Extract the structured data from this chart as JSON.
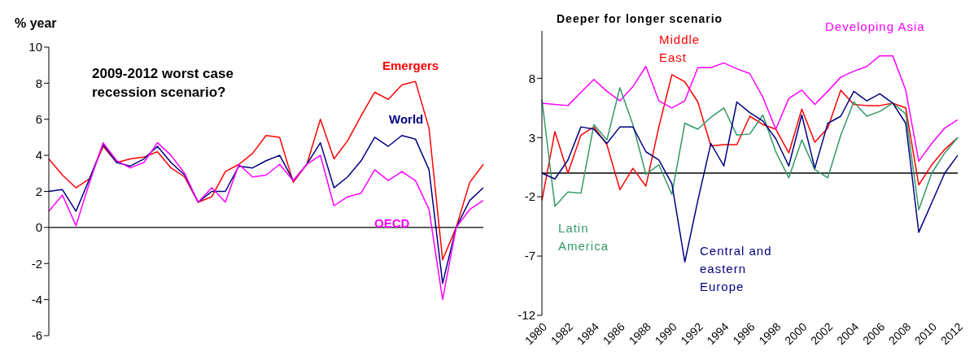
{
  "chart_data": [
    {
      "type": "line",
      "ylabel": "% year",
      "annotations": [
        "2009-2012 worst case recession scenario?"
      ],
      "categories": [
        null,
        null,
        null,
        null,
        null,
        null,
        null,
        null,
        null,
        null,
        null,
        null,
        null,
        null,
        null,
        null,
        null,
        null,
        null,
        null,
        null,
        null,
        null,
        null,
        null,
        null,
        null,
        null,
        null,
        null,
        null,
        null,
        null
      ],
      "series": [
        {
          "name": "Emergers",
          "color": "#ff0000",
          "values": [
            3.8,
            2.9,
            2.2,
            2.7,
            4.5,
            3.6,
            3.8,
            3.9,
            4.2,
            3.3,
            2.8,
            1.4,
            1.7,
            3.1,
            3.5,
            4.1,
            5.1,
            5.0,
            2.5,
            3.5,
            6.0,
            3.8,
            4.8,
            6.2,
            7.5,
            7.1,
            7.9,
            8.1,
            5.5,
            -1.8,
            0.0,
            2.5,
            3.5
          ]
        },
        {
          "name": "World",
          "color": "#000080",
          "values": [
            2.0,
            2.1,
            0.9,
            2.7,
            4.6,
            3.6,
            3.4,
            3.8,
            4.5,
            3.6,
            2.9,
            1.4,
            2.0,
            2.0,
            3.4,
            3.3,
            3.7,
            4.0,
            2.6,
            3.5,
            4.7,
            2.2,
            2.8,
            3.7,
            5.0,
            4.5,
            5.1,
            4.9,
            3.2,
            -3.1,
            0.0,
            1.5,
            2.2
          ]
        },
        {
          "name": "OECD",
          "color": "#ff00ff",
          "values": [
            0.9,
            1.8,
            0.1,
            2.5,
            4.7,
            3.7,
            3.3,
            3.6,
            4.7,
            4.0,
            3.0,
            1.4,
            2.2,
            1.4,
            3.5,
            2.8,
            2.9,
            3.5,
            2.6,
            3.5,
            4.0,
            1.2,
            1.7,
            1.9,
            3.2,
            2.6,
            3.1,
            2.6,
            1.0,
            -4.0,
            0.0,
            1.0,
            1.5
          ]
        }
      ],
      "ylim": [
        -6,
        10
      ],
      "yticks": [
        -6,
        -4,
        -2,
        0,
        2,
        4,
        6,
        8,
        10
      ],
      "ref_lines": [
        {
          "axis": "y",
          "value": 0,
          "color": "#000000"
        }
      ],
      "marker": "none",
      "line_style": "solid"
    },
    {
      "type": "line",
      "annotations": [
        "Deeper for longer scenario"
      ],
      "categories": [
        "1980",
        null,
        "1982",
        null,
        "1984",
        null,
        "1986",
        null,
        "1988",
        null,
        "1990",
        null,
        "1992",
        null,
        "1994",
        null,
        "1996",
        null,
        "1998",
        null,
        "2000",
        null,
        "2002",
        null,
        "2004",
        null,
        "2006",
        null,
        "2008",
        null,
        "2010",
        null,
        "2012"
      ],
      "series": [
        {
          "name": "Middle East",
          "color": "#ff0000",
          "values": [
            -2.3,
            3.5,
            0.0,
            3.2,
            3.9,
            2.4,
            -1.4,
            0.4,
            -1.1,
            3.9,
            8.3,
            7.7,
            6.0,
            2.3,
            2.4,
            2.4,
            4.8,
            4.1,
            3.7,
            1.7,
            5.4,
            2.6,
            3.8,
            7.0,
            5.8,
            5.7,
            5.7,
            5.9,
            5.5,
            -1.0,
            0.7,
            2.0,
            3.0
          ]
        },
        {
          "name": "Developing Asia",
          "color": "#ff00ff",
          "values": [
            5.9,
            5.8,
            5.7,
            6.8,
            7.9,
            6.9,
            6.1,
            7.3,
            9.0,
            6.1,
            5.5,
            6.1,
            8.9,
            8.9,
            9.3,
            8.8,
            8.4,
            6.4,
            3.7,
            6.3,
            7.0,
            5.8,
            6.9,
            8.1,
            8.6,
            9.0,
            9.9,
            9.9,
            7.0,
            1.0,
            2.5,
            3.8,
            4.5
          ]
        },
        {
          "name": "Latin America",
          "color": "#339966",
          "values": [
            6.2,
            -2.8,
            -1.6,
            -1.7,
            4.1,
            2.8,
            7.2,
            4.1,
            -0.1,
            0.7,
            -1.8,
            4.2,
            3.7,
            4.7,
            5.5,
            3.2,
            3.3,
            4.9,
            1.8,
            -0.4,
            2.8,
            0.3,
            -0.4,
            3.2,
            6.0,
            4.8,
            5.2,
            5.9,
            5.0,
            -3.1,
            0.0,
            1.7,
            3.0
          ]
        },
        {
          "name": "Central and eastern Europe",
          "color": "#000080",
          "values": [
            0.0,
            -0.5,
            1.1,
            3.9,
            3.7,
            2.5,
            3.9,
            3.9,
            1.8,
            1.1,
            -0.9,
            -7.5,
            -2.3,
            2.5,
            0.6,
            6.0,
            5.1,
            4.4,
            2.9,
            0.6,
            4.9,
            0.4,
            4.2,
            4.8,
            6.9,
            6.1,
            6.7,
            5.9,
            4.2,
            -5.0,
            -2.5,
            0.0,
            1.5
          ]
        }
      ],
      "ylim": [
        -12,
        12
      ],
      "yticks": [
        -12,
        -7,
        -2,
        3,
        8
      ],
      "ref_lines": [
        {
          "axis": "y",
          "value": 0,
          "color": "#000000"
        }
      ],
      "marker": "none",
      "line_style": "solid"
    }
  ]
}
